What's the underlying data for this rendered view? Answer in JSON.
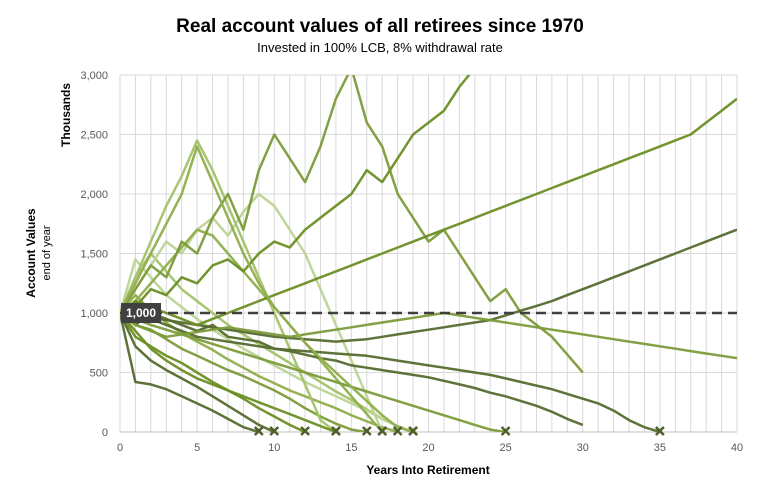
{
  "chart_data": {
    "type": "line",
    "title": "Real account values of all retirees since 1970",
    "subtitle": "Invested in 100% LCB, 8% withdrawal rate",
    "xlabel": "Years Into Retirement",
    "ylabel": "Account Values",
    "ylabel_sub": "end of year",
    "y_units_label": "Thousands",
    "xlim": [
      0,
      40
    ],
    "ylim": [
      0,
      3000
    ],
    "x_ticks": [
      "0",
      "5",
      "10",
      "15",
      "20",
      "25",
      "30",
      "35",
      "40"
    ],
    "y_ticks": [
      "0",
      "500",
      "1,000",
      "1,500",
      "2,000",
      "2,500",
      "3,000"
    ],
    "grid": "vertical lines each year, horizontal lines each 500",
    "reference_line": {
      "value": 1000,
      "label": "1,000",
      "style": "dashed",
      "color": "#404040"
    },
    "depletion_marker": "x",
    "colors": [
      "#556b2f",
      "#6b8e23",
      "#7c9c3a",
      "#8fae4b",
      "#a3c26a",
      "#bcd495"
    ],
    "series": [
      {
        "color": "#556b2f",
        "values": [
          1000,
          420,
          400,
          360,
          300,
          240,
          180,
          110,
          40,
          0
        ]
      },
      {
        "color": "#556b2f",
        "values": [
          1000,
          720,
          600,
          520,
          450,
          380,
          300,
          220,
          140,
          60,
          0
        ]
      },
      {
        "color": "#6b8e23",
        "values": [
          1000,
          800,
          720,
          640,
          580,
          500,
          420,
          350,
          280,
          200,
          130,
          60,
          0
        ]
      },
      {
        "color": "#7c9c3a",
        "values": [
          1000,
          900,
          860,
          780,
          700,
          640,
          580,
          520,
          470,
          410,
          350,
          280,
          200,
          130,
          70,
          20,
          0
        ]
      },
      {
        "color": "#8fae4b",
        "values": [
          1000,
          1150,
          1020,
          920,
          830,
          760,
          690,
          610,
          540,
          470,
          410,
          350,
          300,
          250,
          200,
          140,
          90,
          40,
          0
        ]
      },
      {
        "color": "#a3c26a",
        "values": [
          1000,
          1300,
          1500,
          1350,
          1200,
          1100,
          1000,
          900,
          820,
          740,
          660,
          580,
          500,
          420,
          340,
          270,
          190,
          110,
          50,
          0
        ]
      },
      {
        "color": "#bcd495",
        "values": [
          1000,
          1450,
          1300,
          1150,
          1050,
          950,
          860,
          780,
          700,
          630,
          560,
          490,
          420,
          360,
          300,
          240,
          180,
          110,
          50
        ]
      },
      {
        "color": "#bcd495",
        "values": [
          1000,
          1200,
          1400,
          1600,
          1500,
          1700,
          1800,
          1650,
          1850,
          2000,
          1900,
          1700,
          1500,
          1200,
          900,
          600,
          300,
          0
        ]
      },
      {
        "color": "#a3c26a",
        "values": [
          1000,
          1300,
          1600,
          1900,
          2150,
          2450,
          2200,
          1900,
          1600,
          1300,
          1000,
          700,
          400,
          100,
          0
        ]
      },
      {
        "color": "#8fae4b",
        "values": [
          1000,
          1100,
          1250,
          1400,
          1550,
          1700,
          1650,
          1500,
          1350,
          1200,
          1050,
          900,
          750,
          600,
          450,
          300,
          150,
          0
        ]
      },
      {
        "color": "#6b8e23",
        "values": [
          1000,
          850,
          700,
          600,
          520,
          450,
          400,
          350,
          300,
          250,
          200,
          150,
          100,
          50,
          0
        ]
      },
      {
        "color": "#7c9c3a",
        "values": [
          1000,
          950,
          900,
          860,
          820,
          780,
          740,
          700,
          660,
          620,
          580,
          540,
          500,
          460,
          420,
          380,
          340,
          300,
          260,
          220,
          180,
          140,
          100,
          60,
          20,
          0
        ]
      },
      {
        "color": "#556b2f",
        "values": [
          1000,
          900,
          1000,
          950,
          900,
          850,
          900,
          800,
          780,
          760,
          700,
          680,
          650,
          620,
          600,
          560,
          540,
          520,
          500,
          480,
          460,
          430,
          400,
          370,
          330,
          300,
          260,
          220,
          170,
          110,
          60
        ]
      },
      {
        "color": "#556b2f",
        "values": [
          1000,
          1100,
          950,
          900,
          850,
          800,
          780,
          760,
          740,
          720,
          700,
          690,
          680,
          670,
          660,
          650,
          640,
          620,
          600,
          580,
          560,
          540,
          520,
          500,
          480,
          450,
          420,
          390,
          360,
          320,
          280,
          240,
          180,
          100,
          40,
          0
        ]
      },
      {
        "color": "#7c9c3a",
        "values": [
          1000,
          1200,
          1400,
          1300,
          1600,
          1500,
          1800,
          2000,
          1700,
          2200,
          2500,
          2300,
          2100,
          2400,
          2800,
          3100,
          2600,
          2400,
          2000,
          1800,
          1600,
          1700,
          1500,
          1300,
          1100,
          1200,
          1000,
          900,
          800,
          650,
          500
        ]
      },
      {
        "color": "#6b8e23",
        "values": [
          1000,
          1050,
          1200,
          1150,
          1300,
          1250,
          1400,
          1450,
          1350,
          1500,
          1600,
          1550,
          1700,
          1800,
          1900,
          2000,
          2200,
          2100,
          2300,
          2500,
          2600,
          2700,
          2900,
          3100
        ]
      },
      {
        "color": "#556b2f",
        "values": [
          1000,
          980,
          960,
          940,
          920,
          900,
          880,
          860,
          840,
          820,
          800,
          790,
          780,
          770,
          760,
          770,
          780,
          800,
          820,
          840,
          860,
          880,
          900,
          920,
          940,
          980,
          1020,
          1060,
          1100,
          1150,
          1200,
          1250,
          1300,
          1350,
          1400,
          1450,
          1500,
          1550,
          1600,
          1650,
          1700
        ]
      },
      {
        "color": "#6b8e23",
        "values": [
          1000,
          1100,
          1050,
          1000,
          950,
          900,
          950,
          1000,
          1050,
          1100,
          1150,
          1200,
          1250,
          1300,
          1350,
          1400,
          1450,
          1500,
          1550,
          1600,
          1650,
          1700,
          1750,
          1800,
          1850,
          1900,
          1950,
          2000,
          2050,
          2100,
          2150,
          2200,
          2250,
          2300,
          2350,
          2400,
          2450,
          2500,
          2600,
          2700,
          2800
        ]
      },
      {
        "color": "#7c9c3a",
        "values": [
          1000,
          900,
          850,
          800,
          820,
          840,
          860,
          880,
          860,
          840,
          820,
          800,
          820,
          840,
          860,
          880,
          900,
          920,
          940,
          960,
          980,
          1000,
          980,
          960,
          940,
          920,
          900,
          880,
          860,
          840,
          820,
          800,
          780,
          760,
          740,
          720,
          700,
          680,
          660,
          640,
          620
        ]
      },
      {
        "color": "#8fae4b",
        "values": [
          1000,
          1250,
          1500,
          1750,
          2000,
          2400,
          2100,
          1800,
          1500,
          1250,
          1050,
          900,
          750,
          620,
          500,
          380,
          260,
          140,
          40,
          0
        ]
      }
    ]
  }
}
